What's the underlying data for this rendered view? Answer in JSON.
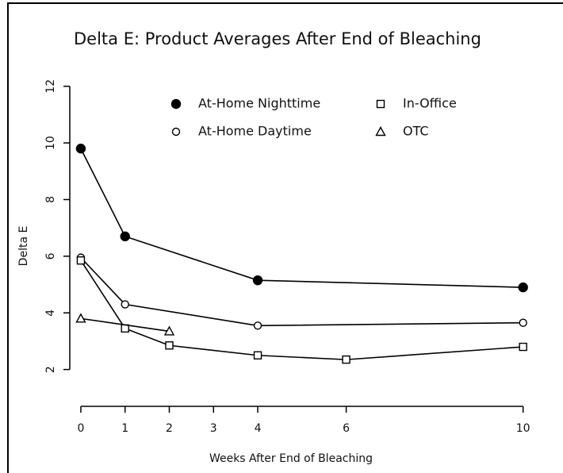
{
  "chart_data": {
    "type": "line",
    "title": "Delta E: Product Averages After End of Bleaching",
    "x_label": "Weeks After End of Bleaching",
    "y_label": "Delta E",
    "xlim": [
      -0.25,
      10.4
    ],
    "ylim": [
      0.7,
      12.3
    ],
    "xticks": [
      0,
      1,
      2,
      3,
      4,
      6,
      10
    ],
    "yticks": [
      2,
      4,
      6,
      8,
      10,
      12
    ],
    "legend": "top",
    "series": [
      {
        "name": "At-Home Nighttime",
        "color": "#000000",
        "marker": "filled-circle",
        "x": [
          0,
          1,
          4,
          10
        ],
        "values": [
          9.8,
          6.7,
          5.15,
          4.9
        ]
      },
      {
        "name": "At-Home Daytime",
        "color": "#000000",
        "marker": "open-circle",
        "x": [
          0,
          1,
          4,
          10
        ],
        "values": [
          5.95,
          4.3,
          3.55,
          3.65
        ]
      },
      {
        "name": "In-Office",
        "color": "#000000",
        "marker": "square",
        "x": [
          0,
          1,
          2,
          4,
          6,
          10
        ],
        "values": [
          5.85,
          3.45,
          2.85,
          2.5,
          2.35,
          2.8
        ]
      },
      {
        "name": "OTC",
        "color": "#000000",
        "marker": "triangle",
        "x": [
          0,
          2
        ],
        "values": [
          3.8,
          3.35
        ]
      }
    ]
  }
}
